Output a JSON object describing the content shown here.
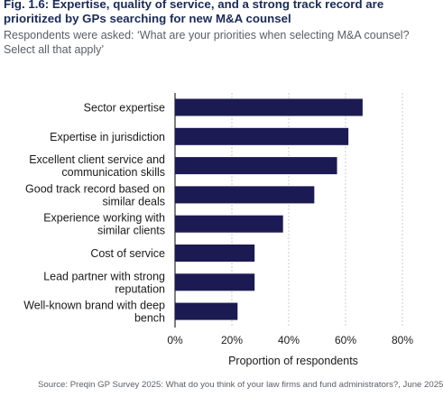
{
  "header": {
    "title": "Fig. 1.6: Expertise, quality of service, and a strong track record are prioritized by GPs searching for new M&A counsel",
    "subtitle": "Respondents were asked: ‘What are your priorities when selecting M&A counsel? Select all that apply’"
  },
  "footer": {
    "source": "Source: Preqin GP Survey 2025: What do you think of your law firms and fund administrators?, June 2025"
  },
  "chart_data": {
    "type": "bar",
    "orientation": "horizontal",
    "categories": [
      [
        "Sector expertise"
      ],
      [
        "Expertise in jurisdiction"
      ],
      [
        "Excellent client service and",
        "communication skills"
      ],
      [
        "Good track record based on",
        "similar deals"
      ],
      [
        "Experience working with",
        "similar clients"
      ],
      [
        "Cost of service"
      ],
      [
        "Lead partner with strong",
        "reputation"
      ],
      [
        "Well-known brand with deep",
        "bench"
      ]
    ],
    "values": [
      66,
      61,
      57,
      49,
      38,
      28,
      28,
      22
    ],
    "xlabel": "Proportion of respondents",
    "xlim": [
      0,
      80
    ],
    "xticks": [
      0,
      20,
      40,
      60,
      80
    ],
    "xtick_suffix": "%",
    "grid": "vertical",
    "bar_color": "#1c1a52",
    "grid_color": "#c8ccd2",
    "axis_color": "#2a2a2a"
  }
}
